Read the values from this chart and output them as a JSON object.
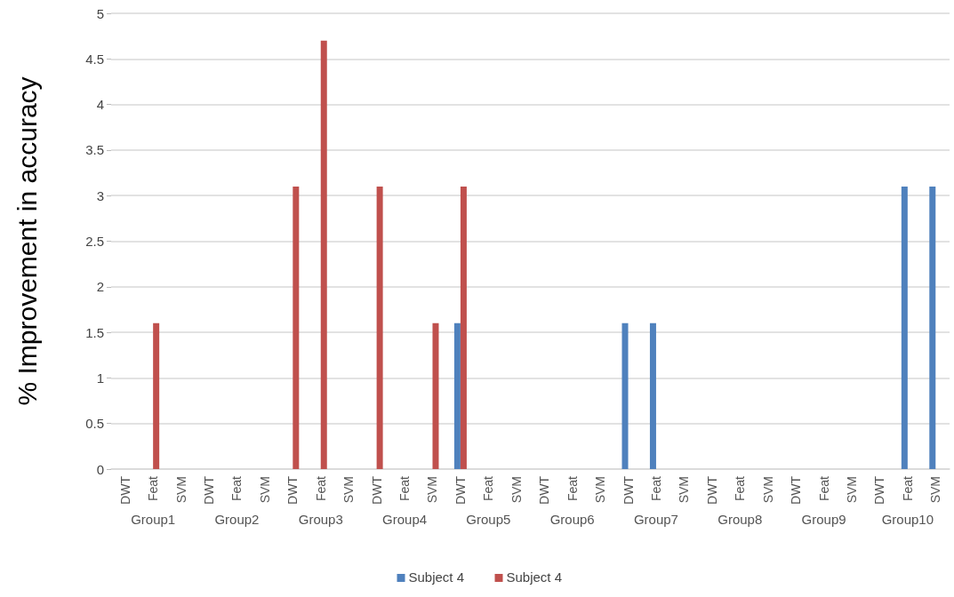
{
  "chart_data": {
    "type": "bar",
    "ylabel": "% Improvement in accuracy",
    "categories": [
      "DWT",
      "Feat",
      "SVM",
      "DWT",
      "Feat",
      "SVM",
      "DWT",
      "Feat",
      "SVM",
      "DWT",
      "Feat",
      "SVM",
      "DWT",
      "Feat",
      "SVM",
      "DWT",
      "Feat",
      "SVM",
      "DWT",
      "Feat",
      "SVM",
      "DWT",
      "Feat",
      "SVM",
      "DWT",
      "Feat",
      "SVM",
      "DWT",
      "Feat",
      "SVM"
    ],
    "series": [
      {
        "name": "Subject 4",
        "color": "#4f81bd",
        "values": [
          0,
          0,
          0,
          0,
          0,
          0,
          0,
          0,
          0,
          0,
          0,
          0,
          1.6,
          0,
          0,
          0,
          0,
          0,
          1.6,
          1.6,
          0,
          0,
          0,
          0,
          0,
          0,
          0,
          0,
          3.1,
          3.1
        ]
      },
      {
        "name": "Subject 4",
        "color": "#c0504d",
        "values": [
          0,
          1.6,
          0,
          0,
          0,
          0,
          3.1,
          4.7,
          0,
          3.1,
          0,
          1.6,
          3.1,
          0,
          0,
          0,
          0,
          0,
          0,
          0,
          0,
          0,
          0,
          0,
          0,
          0,
          0,
          0,
          0,
          0
        ]
      }
    ],
    "annotations": [
      "Group1",
      "Group2",
      "Group3",
      "Group4",
      "Group5",
      "Group6",
      "Group7",
      "Group8",
      "Group9",
      "Group10"
    ],
    "ylim": [
      0,
      5
    ],
    "yticks": [
      0,
      0.5,
      1,
      1.5,
      2,
      2.5,
      3,
      3.5,
      4,
      4.5,
      5
    ],
    "grid": "y",
    "legend": "bottom"
  }
}
